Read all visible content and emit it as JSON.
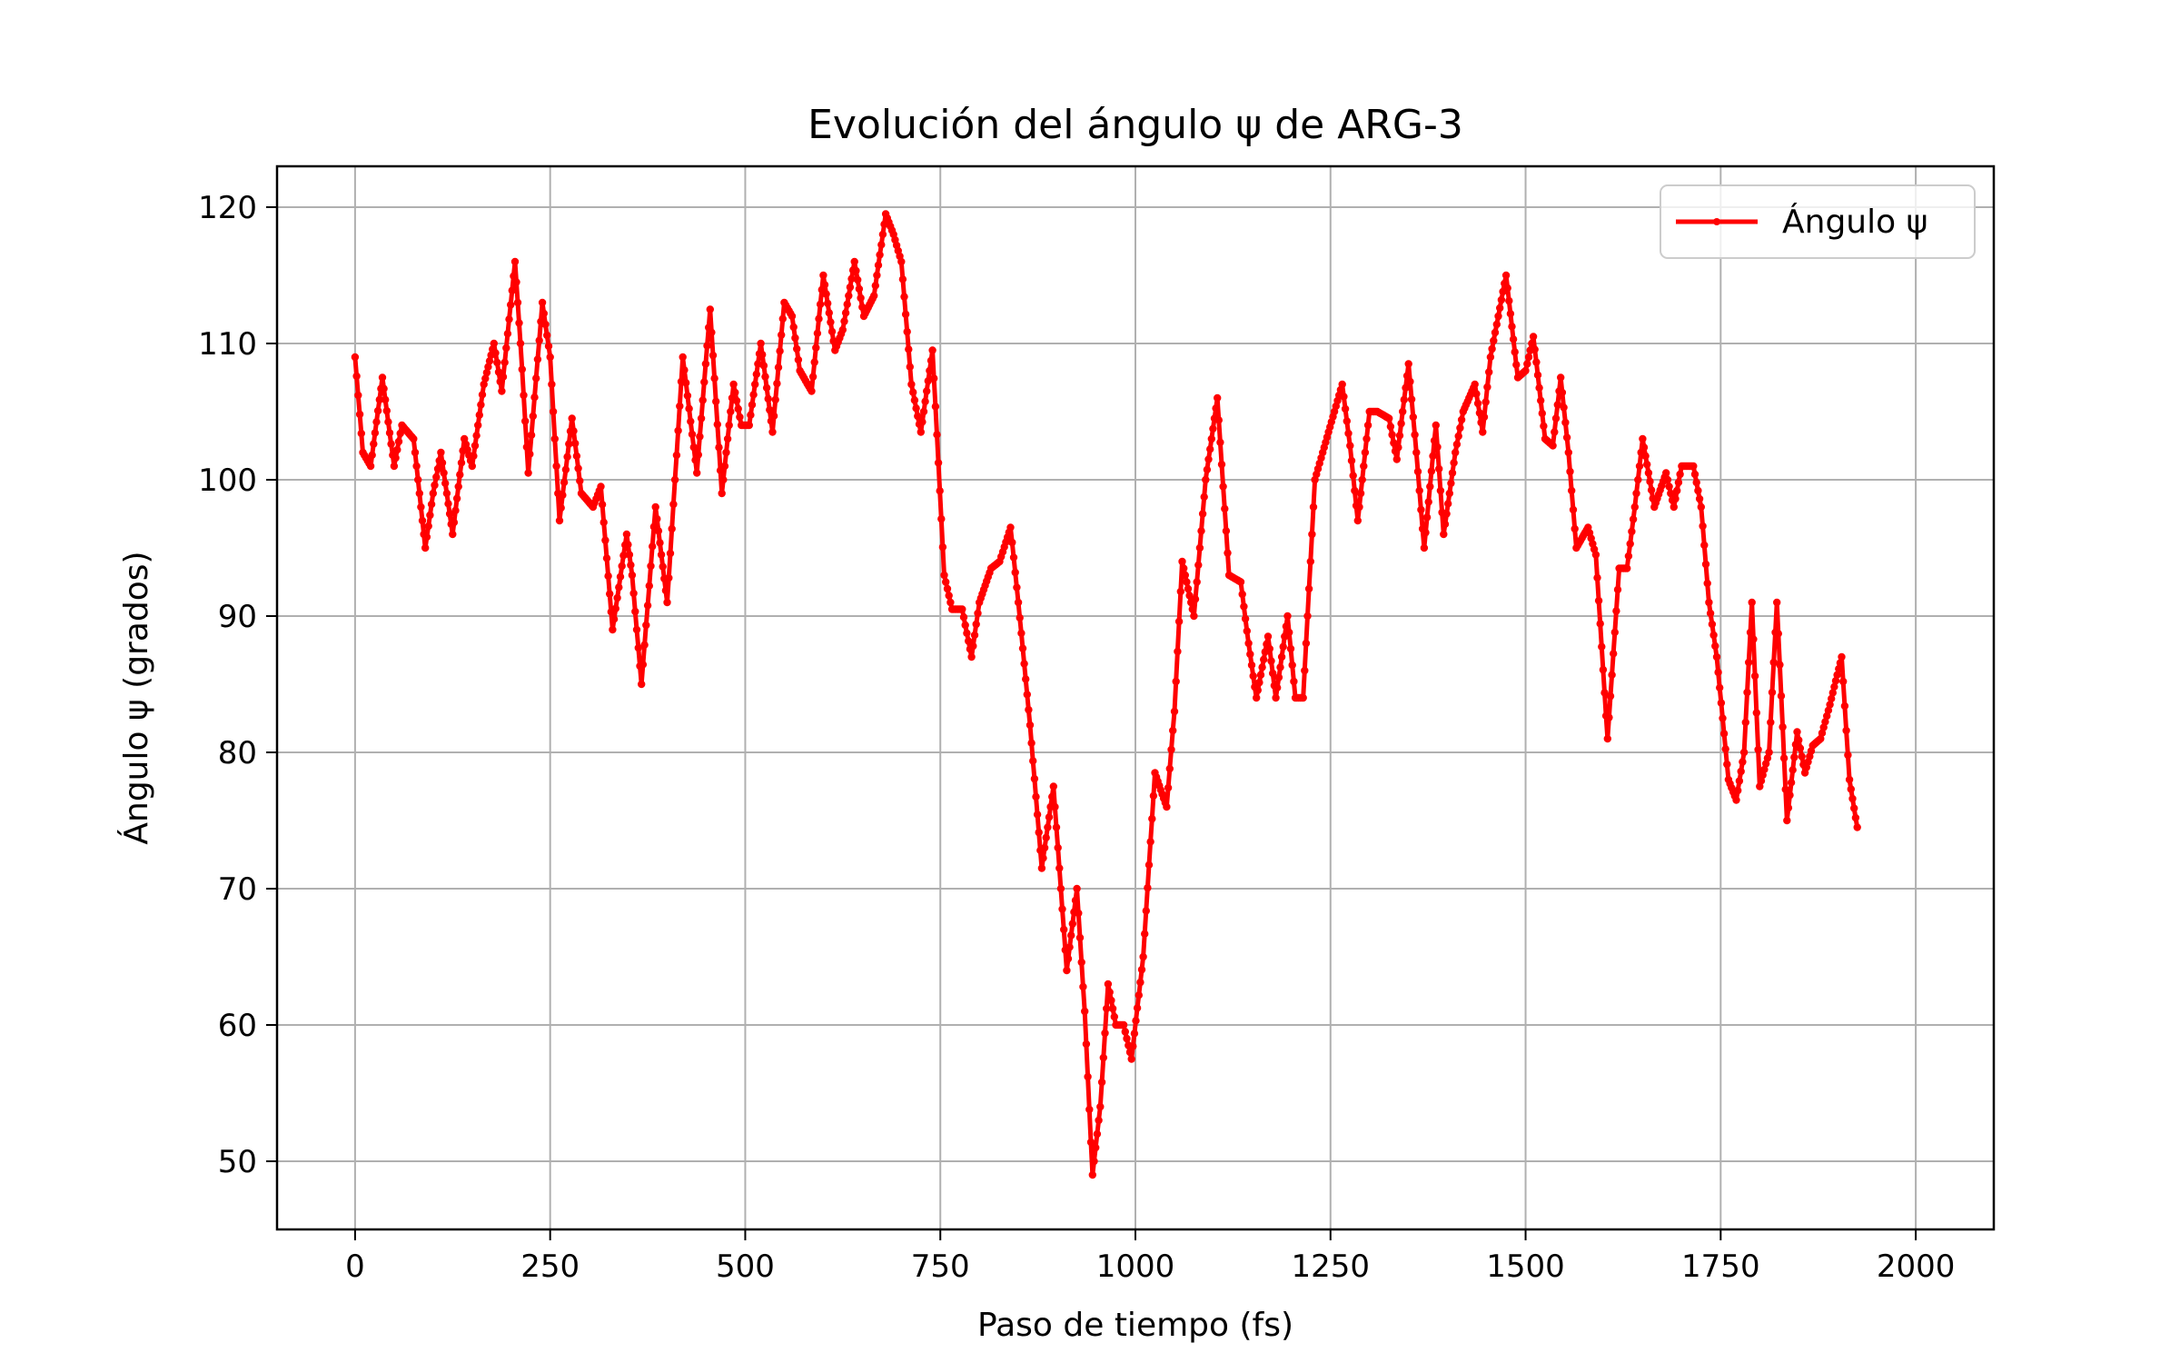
{
  "chart_data": {
    "type": "line",
    "title": "Evolución del ángulo ψ de ARG-3",
    "xlabel": "Paso de tiempo (fs)",
    "ylabel": "Ángulo ψ (grados)",
    "xlim": [
      -100,
      2100
    ],
    "ylim": [
      45,
      123
    ],
    "xticks": [
      0,
      250,
      500,
      750,
      1000,
      1250,
      1500,
      1750,
      2000
    ],
    "yticks": [
      50,
      60,
      70,
      80,
      90,
      100,
      110,
      120
    ],
    "xtick_labels": [
      "0",
      "250",
      "500",
      "750",
      "1000",
      "1250",
      "1500",
      "1750",
      "2000"
    ],
    "ytick_labels": [
      "50",
      "60",
      "70",
      "80",
      "90",
      "100",
      "110",
      "120"
    ],
    "grid": true,
    "legend_position": "top-right",
    "series": [
      {
        "name": "Ángulo ψ",
        "color": "#ff0000",
        "marker": "dot",
        "points": [
          [
            0,
            109
          ],
          [
            10,
            102
          ],
          [
            20,
            101
          ],
          [
            35,
            107.5
          ],
          [
            50,
            101
          ],
          [
            60,
            104
          ],
          [
            75,
            103
          ],
          [
            90,
            95
          ],
          [
            100,
            99
          ],
          [
            110,
            102
          ],
          [
            125,
            96
          ],
          [
            140,
            103
          ],
          [
            150,
            101
          ],
          [
            165,
            107
          ],
          [
            178,
            110
          ],
          [
            188,
            106.5
          ],
          [
            205,
            116
          ],
          [
            212,
            110
          ],
          [
            222,
            100.5
          ],
          [
            240,
            113
          ],
          [
            250,
            109
          ],
          [
            262,
            97
          ],
          [
            278,
            104.5
          ],
          [
            290,
            99
          ],
          [
            305,
            98
          ],
          [
            315,
            99.5
          ],
          [
            330,
            89
          ],
          [
            348,
            96
          ],
          [
            355,
            93
          ],
          [
            367,
            85
          ],
          [
            385,
            98
          ],
          [
            400,
            91
          ],
          [
            420,
            109
          ],
          [
            438,
            100.5
          ],
          [
            455,
            112.5
          ],
          [
            470,
            99
          ],
          [
            485,
            107
          ],
          [
            495,
            104
          ],
          [
            505,
            104
          ],
          [
            520,
            110
          ],
          [
            535,
            103.5
          ],
          [
            550,
            113
          ],
          [
            560,
            112
          ],
          [
            570,
            108
          ],
          [
            585,
            106.5
          ],
          [
            600,
            115
          ],
          [
            615,
            109.5
          ],
          [
            625,
            111
          ],
          [
            640,
            116
          ],
          [
            652,
            112
          ],
          [
            665,
            113.5
          ],
          [
            680,
            119.5
          ],
          [
            690,
            118
          ],
          [
            700,
            116
          ],
          [
            713,
            107
          ],
          [
            725,
            103.5
          ],
          [
            740,
            109.5
          ],
          [
            755,
            93
          ],
          [
            765,
            90.5
          ],
          [
            778,
            90.5
          ],
          [
            790,
            87
          ],
          [
            800,
            91
          ],
          [
            815,
            93.5
          ],
          [
            826,
            94
          ],
          [
            840,
            96.5
          ],
          [
            850,
            91
          ],
          [
            865,
            82
          ],
          [
            880,
            71.5
          ],
          [
            895,
            77.5
          ],
          [
            912,
            64
          ],
          [
            925,
            70
          ],
          [
            935,
            61
          ],
          [
            945,
            49
          ],
          [
            955,
            54
          ],
          [
            965,
            63
          ],
          [
            975,
            60
          ],
          [
            985,
            60
          ],
          [
            995,
            57.5
          ],
          [
            1010,
            65
          ],
          [
            1025,
            78.5
          ],
          [
            1040,
            76
          ],
          [
            1050,
            83
          ],
          [
            1060,
            94
          ],
          [
            1075,
            90
          ],
          [
            1090,
            100
          ],
          [
            1105,
            106
          ],
          [
            1120,
            93
          ],
          [
            1135,
            92.5
          ],
          [
            1145,
            88
          ],
          [
            1155,
            84
          ],
          [
            1170,
            88.5
          ],
          [
            1180,
            84
          ],
          [
            1195,
            90
          ],
          [
            1205,
            84
          ],
          [
            1215,
            84
          ],
          [
            1230,
            100
          ],
          [
            1240,
            102
          ],
          [
            1255,
            105
          ],
          [
            1265,
            107
          ],
          [
            1275,
            102.5
          ],
          [
            1285,
            97
          ],
          [
            1300,
            105
          ],
          [
            1310,
            105
          ],
          [
            1325,
            104.5
          ],
          [
            1335,
            101.5
          ],
          [
            1350,
            108.5
          ],
          [
            1360,
            102
          ],
          [
            1370,
            95
          ],
          [
            1385,
            104
          ],
          [
            1395,
            96
          ],
          [
            1410,
            102
          ],
          [
            1420,
            105
          ],
          [
            1435,
            107
          ],
          [
            1445,
            103.5
          ],
          [
            1455,
            109
          ],
          [
            1475,
            115
          ],
          [
            1490,
            107.5
          ],
          [
            1500,
            108
          ],
          [
            1510,
            110.5
          ],
          [
            1525,
            103
          ],
          [
            1535,
            102.5
          ],
          [
            1545,
            107.5
          ],
          [
            1555,
            102
          ],
          [
            1565,
            95
          ],
          [
            1580,
            96.5
          ],
          [
            1590,
            94.5
          ],
          [
            1605,
            81
          ],
          [
            1620,
            93.5
          ],
          [
            1630,
            93.5
          ],
          [
            1640,
            98
          ],
          [
            1650,
            103
          ],
          [
            1665,
            98
          ],
          [
            1680,
            100.5
          ],
          [
            1690,
            98
          ],
          [
            1700,
            101
          ],
          [
            1715,
            101
          ],
          [
            1725,
            98
          ],
          [
            1735,
            91
          ],
          [
            1745,
            87
          ],
          [
            1760,
            78
          ],
          [
            1770,
            76.5
          ],
          [
            1780,
            80
          ],
          [
            1790,
            91
          ],
          [
            1800,
            77.5
          ],
          [
            1812,
            80
          ],
          [
            1822,
            91
          ],
          [
            1835,
            75
          ],
          [
            1848,
            81.5
          ],
          [
            1858,
            78.5
          ],
          [
            1868,
            80.5
          ],
          [
            1878,
            81
          ],
          [
            1890,
            83.5
          ],
          [
            1905,
            87
          ],
          [
            1915,
            78
          ],
          [
            1925,
            74.5
          ]
        ]
      }
    ]
  }
}
